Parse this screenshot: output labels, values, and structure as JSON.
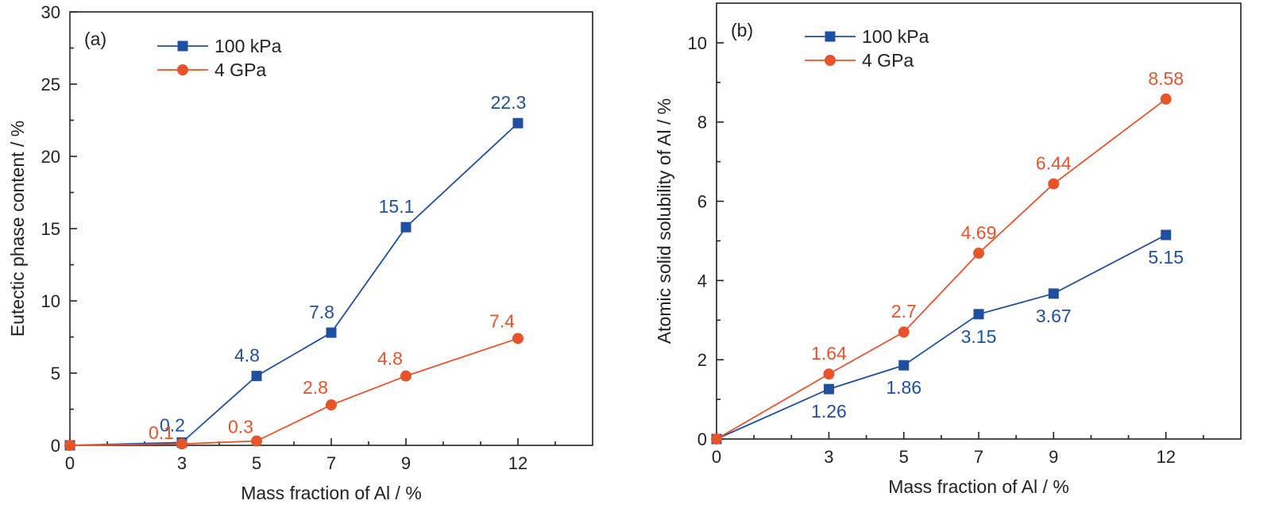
{
  "chart_data": [
    {
      "id": "a",
      "type": "line",
      "panel_label": "(a)",
      "xlabel": "Mass fraction of Al / %",
      "ylabel": "Eutectic phase content / %",
      "xlim": [
        0,
        14
      ],
      "ylim": [
        0,
        30
      ],
      "xticks": [
        0,
        3,
        5,
        7,
        9,
        12
      ],
      "xminor": [
        1,
        2,
        4,
        6,
        8,
        10,
        11,
        13
      ],
      "yticks": [
        0,
        5,
        10,
        15,
        20,
        25,
        30
      ],
      "yminor": [
        2.5,
        7.5,
        12.5,
        17.5,
        22.5,
        27.5
      ],
      "legend_position": "top-left",
      "grid": false,
      "series": [
        {
          "name": "100 kPa",
          "color": "#1f4fa0",
          "marker": "square",
          "x": [
            0,
            3,
            5,
            7,
            9,
            12
          ],
          "y": [
            0,
            0.2,
            4.8,
            7.8,
            15.1,
            22.3
          ],
          "labels": [
            null,
            "0.2",
            "4.8",
            "7.8",
            "15.1",
            "22.3"
          ],
          "label_side": "above"
        },
        {
          "name": "4 GPa",
          "color": "#e8542a",
          "marker": "circle",
          "x": [
            0,
            3,
            5,
            7,
            9,
            12
          ],
          "y": [
            0,
            0.1,
            0.3,
            2.8,
            4.8,
            7.4
          ],
          "labels": [
            null,
            "0.1",
            "0.3",
            "2.8",
            "4.8",
            "7.4"
          ],
          "label_side": "above"
        }
      ]
    },
    {
      "id": "b",
      "type": "line",
      "panel_label": "(b)",
      "xlabel": "Mass fraction of Al / %",
      "ylabel": "Atomic solid solubility of Al / %",
      "xlim": [
        0,
        14
      ],
      "ylim": [
        0,
        11
      ],
      "xticks": [
        0,
        3,
        5,
        7,
        9,
        12
      ],
      "xminor": [
        1,
        2,
        4,
        6,
        8,
        10,
        11,
        13
      ],
      "yticks": [
        0,
        2,
        4,
        6,
        8,
        10
      ],
      "yminor": [
        1,
        3,
        5,
        7,
        9
      ],
      "legend_position": "top-left",
      "grid": false,
      "series": [
        {
          "name": "100 kPa",
          "color": "#1f4fa0",
          "marker": "square",
          "x": [
            0,
            3,
            5,
            7,
            9,
            12
          ],
          "y": [
            0,
            1.26,
            1.86,
            3.15,
            3.67,
            5.15
          ],
          "labels": [
            null,
            "1.26",
            "1.86",
            "3.15",
            "3.67",
            "5.15"
          ],
          "label_side": "below"
        },
        {
          "name": "4 GPa",
          "color": "#e8542a",
          "marker": "circle",
          "x": [
            0,
            3,
            5,
            7,
            9,
            12
          ],
          "y": [
            0,
            1.64,
            2.7,
            4.69,
            6.44,
            8.58
          ],
          "labels": [
            null,
            "1.64",
            "2.7",
            "4.69",
            "6.44",
            "8.58"
          ],
          "label_side": "above"
        }
      ]
    }
  ]
}
